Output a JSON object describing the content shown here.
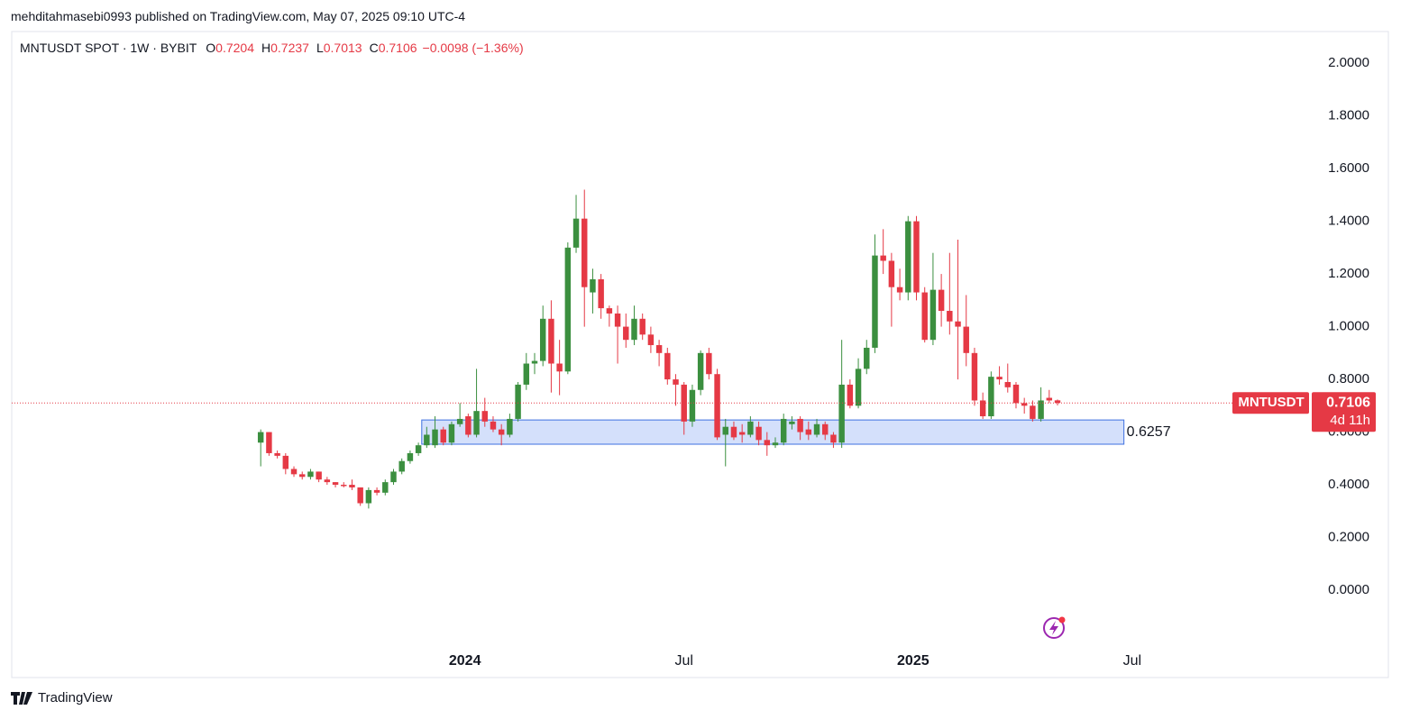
{
  "header": "mehditahmasebi0993 published on TradingView.com, May 07, 2025 09:10 UTC-4",
  "footer": "TradingView",
  "chart_data": {
    "type": "candlestick",
    "title": "MNTUSDT SPOT · 1W · BYBIT",
    "ohlc_labels": [
      "O",
      "H",
      "L",
      "C"
    ],
    "change": "−0.0098 (−1.36%)",
    "up_color": "#3b8f3f",
    "down_color": "#e53945",
    "ylim": [
      -0.205,
      2.12
    ],
    "yticks": [
      {
        "value": 0,
        "label": "0.0000"
      },
      {
        "value": 0.2,
        "label": "0.2000"
      },
      {
        "value": 0.4,
        "label": "0.4000"
      },
      {
        "value": 0.6,
        "label": "0.6000"
      },
      {
        "value": 0.8,
        "label": "0.8000"
      },
      {
        "value": 1,
        "label": "1.0000"
      },
      {
        "value": 1.2,
        "label": "1.2000"
      },
      {
        "value": 1.4,
        "label": "1.4000"
      },
      {
        "value": 1.6,
        "label": "1.6000"
      },
      {
        "value": 1.8,
        "label": "1.8000"
      },
      {
        "value": 2,
        "label": "2.0000"
      }
    ],
    "xlim": [
      -30,
      125
    ],
    "xticks": [
      {
        "value": 24.6,
        "label": "2024"
      },
      {
        "value": 51,
        "label": "Jul"
      },
      {
        "value": 78.6,
        "label": "2025"
      },
      {
        "value": 105,
        "label": "Jul"
      }
    ],
    "zone": {
      "top": 0.646,
      "bottom": 0.554,
      "start": 19.4,
      "end": 104,
      "label": "0.6257",
      "color": "#d4e0fb",
      "border": "#3d6fe0"
    },
    "symbol": "MNTUSDT",
    "countdown": "4d 11h",
    "candles": [
      {
        "o": 0.56,
        "h": 0.61,
        "l": 0.47,
        "c": 0.6
      },
      {
        "o": 0.6,
        "h": 0.6,
        "l": 0.51,
        "c": 0.52
      },
      {
        "o": 0.52,
        "h": 0.53,
        "l": 0.5,
        "c": 0.51
      },
      {
        "o": 0.51,
        "h": 0.52,
        "l": 0.44,
        "c": 0.46
      },
      {
        "o": 0.46,
        "h": 0.47,
        "l": 0.43,
        "c": 0.44
      },
      {
        "o": 0.44,
        "h": 0.45,
        "l": 0.42,
        "c": 0.43
      },
      {
        "o": 0.43,
        "h": 0.46,
        "l": 0.42,
        "c": 0.45
      },
      {
        "o": 0.45,
        "h": 0.45,
        "l": 0.41,
        "c": 0.42
      },
      {
        "o": 0.42,
        "h": 0.43,
        "l": 0.4,
        "c": 0.41
      },
      {
        "o": 0.41,
        "h": 0.41,
        "l": 0.39,
        "c": 0.4
      },
      {
        "o": 0.4,
        "h": 0.41,
        "l": 0.39,
        "c": 0.395
      },
      {
        "o": 0.4,
        "h": 0.42,
        "l": 0.38,
        "c": 0.39
      },
      {
        "o": 0.39,
        "h": 0.39,
        "l": 0.32,
        "c": 0.33
      },
      {
        "o": 0.33,
        "h": 0.39,
        "l": 0.31,
        "c": 0.38
      },
      {
        "o": 0.38,
        "h": 0.39,
        "l": 0.36,
        "c": 0.37
      },
      {
        "o": 0.37,
        "h": 0.42,
        "l": 0.36,
        "c": 0.41
      },
      {
        "o": 0.41,
        "h": 0.46,
        "l": 0.4,
        "c": 0.45
      },
      {
        "o": 0.45,
        "h": 0.5,
        "l": 0.44,
        "c": 0.49
      },
      {
        "o": 0.49,
        "h": 0.53,
        "l": 0.48,
        "c": 0.52
      },
      {
        "o": 0.52,
        "h": 0.56,
        "l": 0.51,
        "c": 0.55
      },
      {
        "o": 0.55,
        "h": 0.62,
        "l": 0.54,
        "c": 0.59
      },
      {
        "o": 0.55,
        "h": 0.66,
        "l": 0.54,
        "c": 0.61
      },
      {
        "o": 0.61,
        "h": 0.62,
        "l": 0.55,
        "c": 0.56
      },
      {
        "o": 0.56,
        "h": 0.64,
        "l": 0.55,
        "c": 0.63
      },
      {
        "o": 0.63,
        "h": 0.71,
        "l": 0.62,
        "c": 0.65
      },
      {
        "o": 0.66,
        "h": 0.67,
        "l": 0.58,
        "c": 0.59
      },
      {
        "o": 0.59,
        "h": 0.84,
        "l": 0.58,
        "c": 0.68
      },
      {
        "o": 0.68,
        "h": 0.73,
        "l": 0.62,
        "c": 0.64
      },
      {
        "o": 0.64,
        "h": 0.66,
        "l": 0.6,
        "c": 0.61
      },
      {
        "o": 0.61,
        "h": 0.63,
        "l": 0.55,
        "c": 0.59
      },
      {
        "o": 0.59,
        "h": 0.67,
        "l": 0.58,
        "c": 0.65
      },
      {
        "o": 0.65,
        "h": 0.79,
        "l": 0.64,
        "c": 0.78
      },
      {
        "o": 0.78,
        "h": 0.9,
        "l": 0.76,
        "c": 0.86
      },
      {
        "o": 0.86,
        "h": 0.9,
        "l": 0.82,
        "c": 0.87
      },
      {
        "o": 0.87,
        "h": 1.08,
        "l": 0.85,
        "c": 1.03
      },
      {
        "o": 1.03,
        "h": 1.1,
        "l": 0.75,
        "c": 0.86
      },
      {
        "o": 0.86,
        "h": 0.95,
        "l": 0.74,
        "c": 0.83
      },
      {
        "o": 0.83,
        "h": 1.32,
        "l": 0.82,
        "c": 1.3
      },
      {
        "o": 1.3,
        "h": 1.5,
        "l": 1.28,
        "c": 1.41
      },
      {
        "o": 1.41,
        "h": 1.52,
        "l": 1.0,
        "c": 1.15
      },
      {
        "o": 1.13,
        "h": 1.22,
        "l": 1.05,
        "c": 1.18
      },
      {
        "o": 1.18,
        "h": 1.2,
        "l": 1.03,
        "c": 1.07
      },
      {
        "o": 1.07,
        "h": 1.08,
        "l": 1.0,
        "c": 1.05
      },
      {
        "o": 1.05,
        "h": 1.08,
        "l": 0.86,
        "c": 1.0
      },
      {
        "o": 1.0,
        "h": 1.05,
        "l": 0.92,
        "c": 0.95
      },
      {
        "o": 0.95,
        "h": 1.08,
        "l": 0.93,
        "c": 1.03
      },
      {
        "o": 1.03,
        "h": 1.05,
        "l": 0.95,
        "c": 0.97
      },
      {
        "o": 0.97,
        "h": 1.0,
        "l": 0.9,
        "c": 0.93
      },
      {
        "o": 0.93,
        "h": 0.95,
        "l": 0.85,
        "c": 0.9
      },
      {
        "o": 0.9,
        "h": 0.92,
        "l": 0.78,
        "c": 0.8
      },
      {
        "o": 0.8,
        "h": 0.82,
        "l": 0.7,
        "c": 0.78
      },
      {
        "o": 0.78,
        "h": 0.79,
        "l": 0.59,
        "c": 0.64
      },
      {
        "o": 0.64,
        "h": 0.78,
        "l": 0.62,
        "c": 0.76
      },
      {
        "o": 0.76,
        "h": 0.91,
        "l": 0.74,
        "c": 0.9
      },
      {
        "o": 0.9,
        "h": 0.92,
        "l": 0.8,
        "c": 0.82
      },
      {
        "o": 0.82,
        "h": 0.84,
        "l": 0.57,
        "c": 0.58
      },
      {
        "o": 0.59,
        "h": 0.65,
        "l": 0.47,
        "c": 0.62
      },
      {
        "o": 0.62,
        "h": 0.64,
        "l": 0.57,
        "c": 0.58
      },
      {
        "o": 0.6,
        "h": 0.63,
        "l": 0.56,
        "c": 0.59
      },
      {
        "o": 0.59,
        "h": 0.66,
        "l": 0.58,
        "c": 0.64
      },
      {
        "o": 0.62,
        "h": 0.64,
        "l": 0.55,
        "c": 0.57
      },
      {
        "o": 0.57,
        "h": 0.6,
        "l": 0.51,
        "c": 0.55
      },
      {
        "o": 0.55,
        "h": 0.58,
        "l": 0.54,
        "c": 0.56
      },
      {
        "o": 0.56,
        "h": 0.67,
        "l": 0.55,
        "c": 0.65
      },
      {
        "o": 0.63,
        "h": 0.66,
        "l": 0.61,
        "c": 0.64
      },
      {
        "o": 0.65,
        "h": 0.66,
        "l": 0.57,
        "c": 0.6
      },
      {
        "o": 0.61,
        "h": 0.64,
        "l": 0.57,
        "c": 0.59
      },
      {
        "o": 0.59,
        "h": 0.65,
        "l": 0.58,
        "c": 0.63
      },
      {
        "o": 0.63,
        "h": 0.64,
        "l": 0.57,
        "c": 0.59
      },
      {
        "o": 0.59,
        "h": 0.6,
        "l": 0.54,
        "c": 0.56
      },
      {
        "o": 0.56,
        "h": 0.95,
        "l": 0.54,
        "c": 0.78
      },
      {
        "o": 0.78,
        "h": 0.8,
        "l": 0.69,
        "c": 0.7
      },
      {
        "o": 0.7,
        "h": 0.88,
        "l": 0.69,
        "c": 0.84
      },
      {
        "o": 0.84,
        "h": 0.95,
        "l": 0.82,
        "c": 0.92
      },
      {
        "o": 0.92,
        "h": 1.35,
        "l": 0.9,
        "c": 1.27
      },
      {
        "o": 1.27,
        "h": 1.37,
        "l": 1.2,
        "c": 1.25
      },
      {
        "o": 1.25,
        "h": 1.28,
        "l": 1.0,
        "c": 1.15
      },
      {
        "o": 1.15,
        "h": 1.22,
        "l": 1.1,
        "c": 1.13
      },
      {
        "o": 1.13,
        "h": 1.42,
        "l": 1.1,
        "c": 1.4
      },
      {
        "o": 1.4,
        "h": 1.42,
        "l": 1.1,
        "c": 1.13
      },
      {
        "o": 1.13,
        "h": 1.15,
        "l": 0.94,
        "c": 0.95
      },
      {
        "o": 0.95,
        "h": 1.28,
        "l": 0.93,
        "c": 1.14
      },
      {
        "o": 1.14,
        "h": 1.2,
        "l": 1.0,
        "c": 1.06
      },
      {
        "o": 1.06,
        "h": 1.28,
        "l": 0.97,
        "c": 1.02
      },
      {
        "o": 1.02,
        "h": 1.33,
        "l": 0.8,
        "c": 1.0
      },
      {
        "o": 1.0,
        "h": 1.12,
        "l": 0.85,
        "c": 0.9
      },
      {
        "o": 0.9,
        "h": 0.92,
        "l": 0.7,
        "c": 0.72
      },
      {
        "o": 0.72,
        "h": 0.75,
        "l": 0.65,
        "c": 0.66
      },
      {
        "o": 0.66,
        "h": 0.83,
        "l": 0.65,
        "c": 0.81
      },
      {
        "o": 0.81,
        "h": 0.85,
        "l": 0.78,
        "c": 0.8
      },
      {
        "o": 0.79,
        "h": 0.86,
        "l": 0.75,
        "c": 0.77
      },
      {
        "o": 0.78,
        "h": 0.79,
        "l": 0.69,
        "c": 0.71
      },
      {
        "o": 0.71,
        "h": 0.73,
        "l": 0.67,
        "c": 0.7
      },
      {
        "o": 0.7,
        "h": 0.72,
        "l": 0.64,
        "c": 0.65
      },
      {
        "o": 0.65,
        "h": 0.77,
        "l": 0.64,
        "c": 0.72
      },
      {
        "o": 0.73,
        "h": 0.76,
        "l": 0.71,
        "c": 0.72
      },
      {
        "o": 0.7204,
        "h": 0.7237,
        "l": 0.7013,
        "c": 0.7106
      }
    ]
  }
}
